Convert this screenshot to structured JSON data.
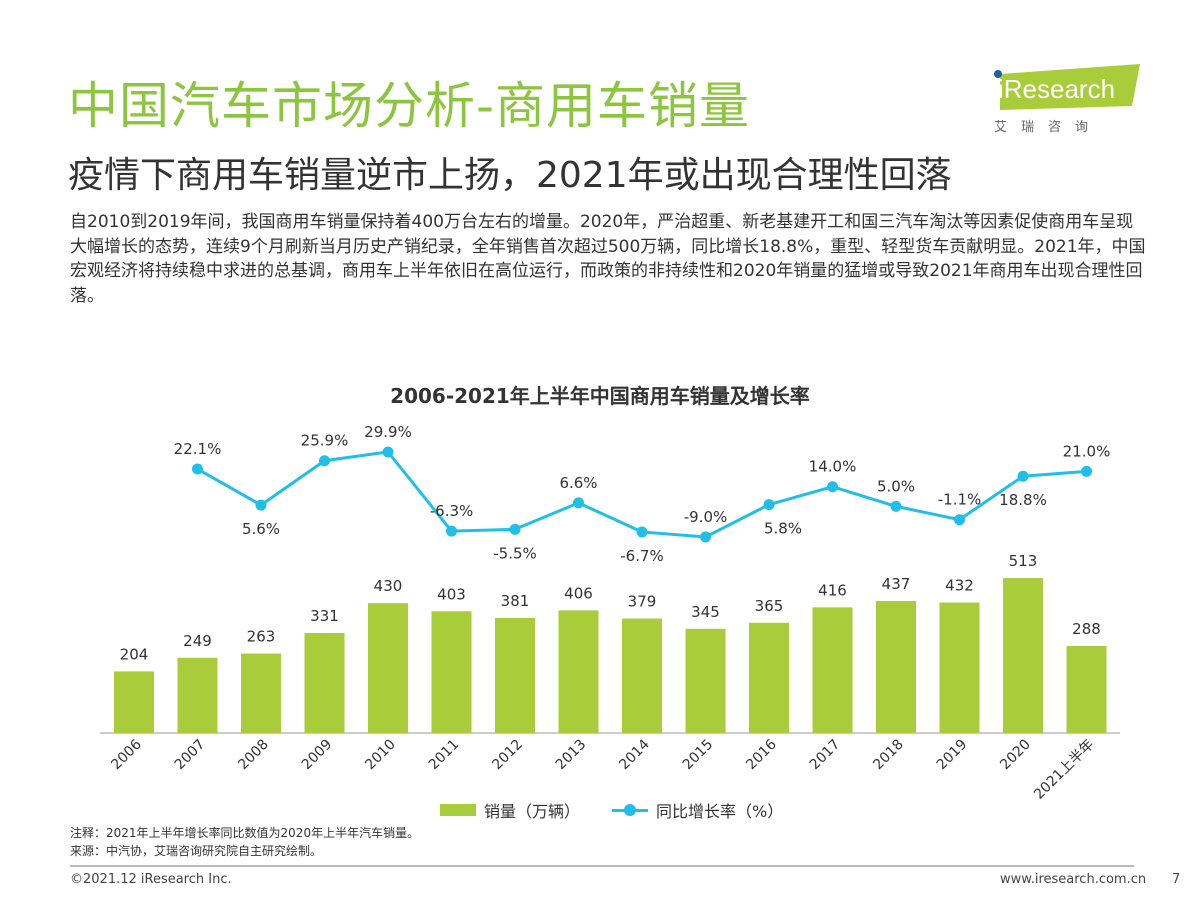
{
  "header": {
    "title": "中国汽车市场分析-商用车销量",
    "subtitle": "疫情下商用车销量逆市上扬，2021年或出现合理性回落",
    "body": "自2010到2019年间，我国商用车销量保持着400万台左右的增量。2020年，严治超重、新老基建开工和国三汽车淘汰等因素促使商用车呈现大幅增长的态势，连续9个月刷新当月历史产销纪录，全年销售首次超过500万辆，同比增长18.8%，重型、轻型货车贡献明显。2021年，中国宏观经济将持续稳中求进的总基调，商用车上半年依旧在高位运行，而政策的非持续性和2020年销量的猛增或导致2021年商用车出现合理性回落。"
  },
  "logo": {
    "text": "iResearch",
    "cn": "艾瑞咨询"
  },
  "chart_data": {
    "type": "bar+line",
    "title": "2006-2021年上半年中国商用车销量及增长率",
    "categories": [
      "2006",
      "2007",
      "2008",
      "2009",
      "2010",
      "2011",
      "2012",
      "2013",
      "2014",
      "2015",
      "2016",
      "2017",
      "2018",
      "2019",
      "2020",
      "2021上半年"
    ],
    "series": [
      {
        "name": "销量（万辆）",
        "type": "bar",
        "color": "#a9cc3a",
        "values": [
          204,
          249,
          263,
          331,
          430,
          403,
          381,
          406,
          379,
          345,
          365,
          416,
          437,
          432,
          513,
          288
        ]
      },
      {
        "name": "同比增长率（%）",
        "type": "line",
        "color": "#1fbfe8",
        "values": [
          null,
          22.1,
          5.6,
          25.9,
          29.9,
          -6.3,
          -5.5,
          6.6,
          -6.7,
          -9.0,
          5.8,
          14.0,
          5.0,
          -1.1,
          18.8,
          21.0
        ]
      }
    ],
    "legend": "bottom"
  },
  "notes": {
    "note": "注释：2021年上半年增长率同比数值为2020年上半年汽车销量。",
    "source": "来源：中汽协，艾瑞咨询研究院自主研究绘制。"
  },
  "footer": {
    "copyright": "©2021.12 iResearch Inc.",
    "url": "www.iresearch.com.cn",
    "page": "7"
  }
}
